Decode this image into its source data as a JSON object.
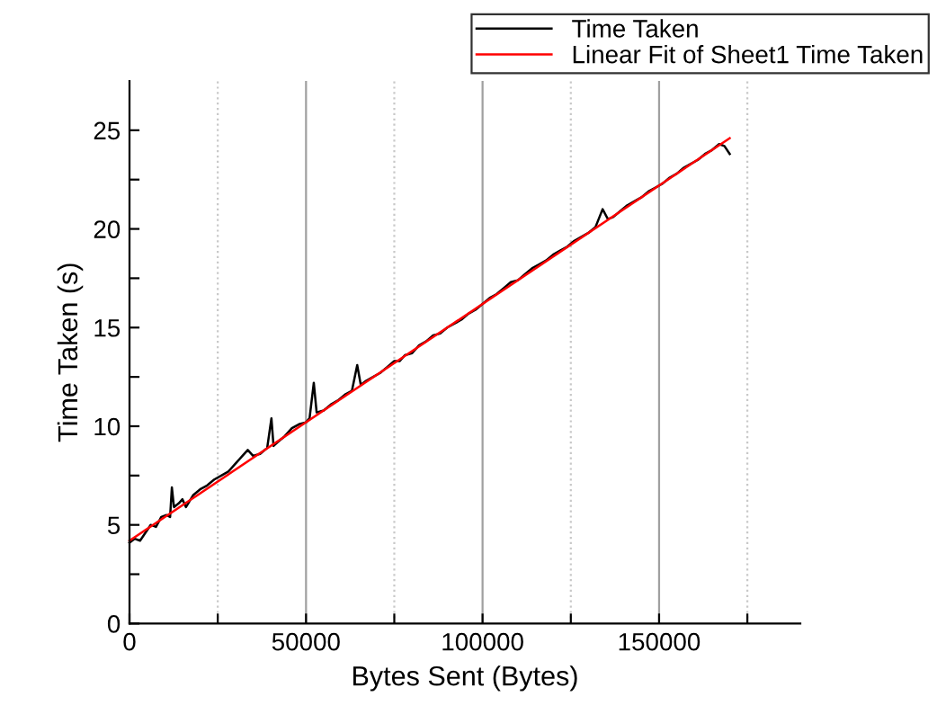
{
  "chart_data": {
    "type": "line",
    "xlabel": "Bytes Sent (Bytes)",
    "ylabel": "Time Taken (s)",
    "xlim": [
      0,
      190000
    ],
    "ylim": [
      0,
      27.5
    ],
    "xticks": [
      0,
      {
        "value": 25000,
        "label": null
      },
      50000,
      {
        "value": 75000,
        "label": null
      },
      100000,
      {
        "value": 125000,
        "label": null
      },
      150000,
      {
        "value": 175000,
        "label": null
      }
    ],
    "yticks": [
      0,
      {
        "value": 2.5,
        "label": null
      },
      5,
      {
        "value": 7.5,
        "label": null
      },
      10,
      {
        "value": 12.5,
        "label": null
      },
      15,
      {
        "value": 17.5,
        "label": null
      },
      20,
      {
        "value": 22.5,
        "label": null
      },
      25
    ],
    "grid": "x",
    "legend": "top right",
    "series": [
      {
        "name": "Time Taken",
        "color": "#000000",
        "x": [
          0,
          1500,
          3000,
          4500,
          6000,
          7500,
          9000,
          10500,
          11500,
          12000,
          12600,
          14000,
          15000,
          16000,
          18000,
          20000,
          22000,
          24000,
          26000,
          28000,
          30000,
          32000,
          33500,
          35000,
          37000,
          39000,
          40200,
          40800,
          42000,
          44000,
          46000,
          48000,
          50000,
          51000,
          52200,
          53000,
          55000,
          57000,
          59000,
          61000,
          63000,
          64500,
          65500,
          67000,
          69000,
          71000,
          73000,
          75000,
          76500,
          78000,
          80000,
          82000,
          84000,
          86000,
          88000,
          90000,
          92000,
          94000,
          96000,
          98000,
          100000,
          102000,
          104000,
          106000,
          108000,
          110000,
          112000,
          114000,
          116000,
          118000,
          120000,
          122000,
          124000,
          126000,
          128000,
          130000,
          132000,
          134000,
          135500,
          137000,
          139000,
          141000,
          143000,
          145000,
          147000,
          149000,
          151000,
          153000,
          155000,
          157000,
          159000,
          161000,
          163000,
          165000,
          167000,
          168500,
          170000
        ],
        "values": [
          4.1,
          4.3,
          4.2,
          4.6,
          5.0,
          4.9,
          5.4,
          5.5,
          5.4,
          6.9,
          5.9,
          6.1,
          6.3,
          5.9,
          6.5,
          6.8,
          7.0,
          7.3,
          7.5,
          7.7,
          8.1,
          8.5,
          8.8,
          8.5,
          8.6,
          8.9,
          10.4,
          9.0,
          9.2,
          9.5,
          9.9,
          10.1,
          10.2,
          10.4,
          12.2,
          10.7,
          10.8,
          11.1,
          11.3,
          11.6,
          11.8,
          13.1,
          12.1,
          12.3,
          12.5,
          12.7,
          13.0,
          13.3,
          13.3,
          13.6,
          13.7,
          14.1,
          14.3,
          14.6,
          14.7,
          15.0,
          15.2,
          15.4,
          15.7,
          15.9,
          16.2,
          16.5,
          16.7,
          17.0,
          17.3,
          17.4,
          17.7,
          18.0,
          18.2,
          18.4,
          18.7,
          18.9,
          19.1,
          19.4,
          19.6,
          19.8,
          20.1,
          21.0,
          20.5,
          20.6,
          20.9,
          21.2,
          21.4,
          21.6,
          21.9,
          22.1,
          22.3,
          22.6,
          22.8,
          23.1,
          23.3,
          23.5,
          23.8,
          24.0,
          24.3,
          24.2,
          23.8
        ]
      },
      {
        "name": "Linear Fit of Sheet1 Time Taken",
        "color": "#ff0000",
        "x": [
          0,
          170000
        ],
        "values": [
          4.2,
          24.6
        ]
      }
    ]
  }
}
